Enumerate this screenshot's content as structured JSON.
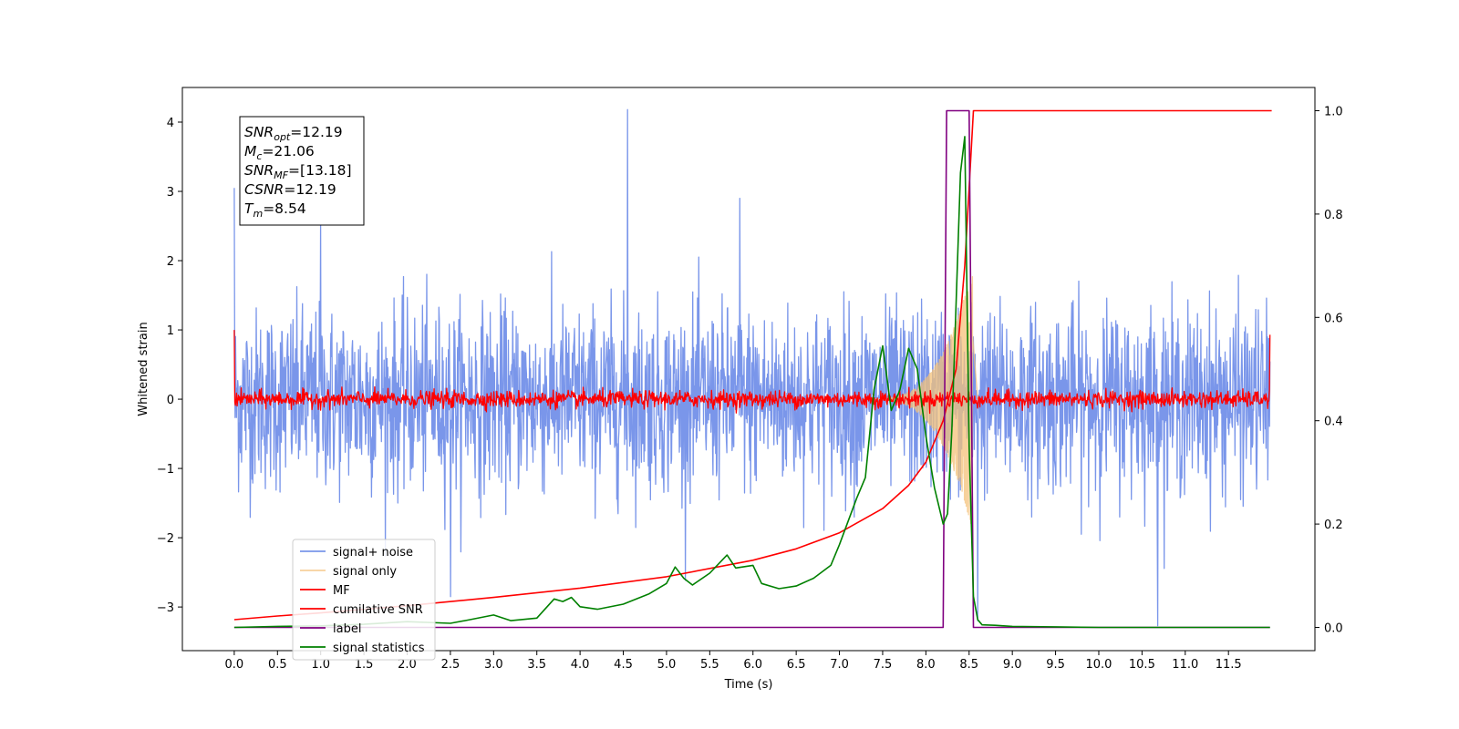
{
  "chart_data": {
    "type": "line",
    "title": "",
    "xlabel": "Time (s)",
    "ylabel": "Whitened strain",
    "xlim": [
      -0.6,
      12.5
    ],
    "ylim": [
      -3.63,
      4.5
    ],
    "y2lim": [
      -0.045,
      1.045
    ],
    "x_ticks": [
      0.0,
      0.5,
      1.0,
      1.5,
      2.0,
      2.5,
      3.0,
      3.5,
      4.0,
      4.5,
      5.0,
      5.5,
      6.0,
      6.5,
      7.0,
      7.5,
      8.0,
      8.5,
      9.0,
      9.5,
      10.0,
      10.5,
      11.0,
      11.5
    ],
    "x_tick_labels": [
      "0.0",
      "0.5",
      "1.0",
      "1.5",
      "2.0",
      "2.5",
      "3.0",
      "3.5",
      "4.0",
      "4.5",
      "5.0",
      "5.5",
      "6.0",
      "6.5",
      "7.0",
      "7.5",
      "8.0",
      "8.5",
      "9.0",
      "9.5",
      "10.0",
      "10.5",
      "11.0",
      "11.5"
    ],
    "y_ticks": [
      -3,
      -2,
      -1,
      0,
      1,
      2,
      3,
      4
    ],
    "y_tick_labels": [
      "−3",
      "−2",
      "−1",
      "0",
      "1",
      "2",
      "3",
      "4"
    ],
    "y2_ticks": [
      0.0,
      0.2,
      0.4,
      0.6,
      0.8,
      1.0
    ],
    "y2_tick_labels": [
      "0.0",
      "0.2",
      "0.4",
      "0.6",
      "0.8",
      "1.0"
    ],
    "grid": false,
    "legend_position": "lower-left",
    "annotation_lines": [
      {
        "var": "SNR",
        "sub": "opt",
        "rest": "=12.19"
      },
      {
        "var": "M",
        "sub": "c",
        "rest": "=21.06"
      },
      {
        "var": "SNR",
        "sub": "MF",
        "rest": "=[13.18]"
      },
      {
        "var": "CSNR",
        "sub": "",
        "rest": "=12.19"
      },
      {
        "var": "T",
        "sub": "m",
        "rest": "=8.54"
      }
    ],
    "series": [
      {
        "name": "signal+ noise",
        "axis": "left",
        "color": "#4169e1",
        "opacity": 0.7,
        "kind": "noise",
        "x_range": [
          0.0,
          11.98
        ],
        "std": 0.65,
        "samples": 2400,
        "peaks": [
          [
            0.0,
            3.05
          ],
          [
            1.0,
            2.55
          ],
          [
            4.55,
            4.18
          ],
          [
            5.85,
            2.9
          ],
          [
            8.6,
            2.62
          ]
        ],
        "troughs": [
          [
            2.5,
            -2.85
          ],
          [
            8.6,
            -3.2
          ],
          [
            10.68,
            -3.27
          ]
        ]
      },
      {
        "name": "signal only",
        "axis": "left",
        "color": "#f4c27a",
        "opacity": 0.75,
        "kind": "chirp",
        "x_range": [
          7.3,
          8.6
        ],
        "peak_amplitude": 1.9,
        "merger_time": 8.54
      },
      {
        "name": "MF",
        "axis": "left",
        "color": "#ff0000",
        "kind": "noise",
        "x_range": [
          0.0,
          11.98
        ],
        "std": 0.06,
        "samples": 1800,
        "start_value": 1.0,
        "end_value": 0.93
      },
      {
        "name": "cumilative SNR",
        "axis": "right",
        "color": "#ff0000",
        "x": [
          0.0,
          0.5,
          1.0,
          2.0,
          3.0,
          4.0,
          5.0,
          6.0,
          6.5,
          7.0,
          7.5,
          7.8,
          8.0,
          8.2,
          8.35,
          8.45,
          8.55,
          12.0
        ],
        "y": [
          0.015,
          0.022,
          0.028,
          0.042,
          0.058,
          0.076,
          0.098,
          0.13,
          0.152,
          0.183,
          0.23,
          0.275,
          0.32,
          0.4,
          0.5,
          0.7,
          1.0,
          1.0
        ]
      },
      {
        "name": "label",
        "axis": "right",
        "color": "#800080",
        "x": [
          0.0,
          8.2,
          8.24,
          8.5,
          8.55,
          11.98
        ],
        "y": [
          0.0,
          0.0,
          1.0,
          1.0,
          0.0,
          0.0
        ]
      },
      {
        "name": "signal statistics",
        "axis": "right",
        "color": "#008000",
        "x": [
          0.0,
          0.5,
          1.0,
          1.5,
          2.0,
          2.5,
          2.7,
          3.0,
          3.2,
          3.5,
          3.7,
          3.8,
          3.9,
          4.0,
          4.2,
          4.5,
          4.8,
          5.0,
          5.1,
          5.2,
          5.3,
          5.5,
          5.7,
          5.8,
          6.0,
          6.1,
          6.3,
          6.5,
          6.7,
          6.9,
          7.0,
          7.2,
          7.3,
          7.4,
          7.5,
          7.6,
          7.7,
          7.8,
          7.9,
          8.0,
          8.1,
          8.2,
          8.25,
          8.3,
          8.4,
          8.45,
          8.5,
          8.55,
          8.6,
          8.65,
          8.8,
          9.0,
          9.5,
          10.0,
          11.0,
          11.98
        ],
        "y": [
          0.0,
          0.002,
          0.003,
          0.006,
          0.011,
          0.008,
          0.014,
          0.024,
          0.013,
          0.018,
          0.055,
          0.05,
          0.058,
          0.04,
          0.035,
          0.045,
          0.065,
          0.085,
          0.117,
          0.095,
          0.082,
          0.105,
          0.14,
          0.115,
          0.12,
          0.085,
          0.075,
          0.08,
          0.095,
          0.12,
          0.16,
          0.25,
          0.29,
          0.46,
          0.545,
          0.42,
          0.46,
          0.54,
          0.5,
          0.37,
          0.27,
          0.2,
          0.22,
          0.38,
          0.88,
          0.95,
          0.35,
          0.06,
          0.015,
          0.005,
          0.004,
          0.002,
          0.001,
          0.0,
          0.0,
          0.0
        ]
      }
    ]
  }
}
